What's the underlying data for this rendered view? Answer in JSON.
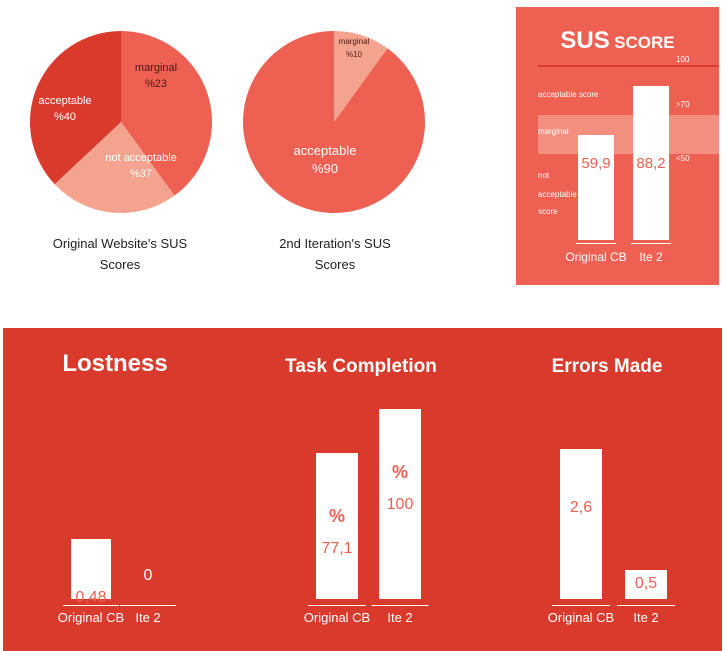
{
  "chart_data": [
    {
      "type": "pie",
      "title": "Original Website's SUS Scores",
      "slices": [
        {
          "label": "acceptable",
          "value_label": "%40",
          "value": 40,
          "color": "#ee6052"
        },
        {
          "label": "marginal",
          "value_label": "%23",
          "value": 23,
          "color": "#f4a48e"
        },
        {
          "label": "not acceptable",
          "value_label": "%37",
          "value": 37,
          "color": "#d93a2c"
        }
      ]
    },
    {
      "type": "pie",
      "title": "2nd Iteration's SUS Scores",
      "slices": [
        {
          "label": "marginal",
          "value_label": "%10",
          "value": 10,
          "color": "#f4a48e"
        },
        {
          "label": "acceptable",
          "value_label": "%90",
          "value": 90,
          "color": "#ee6052"
        }
      ]
    },
    {
      "type": "bar",
      "title_main": "SUS",
      "title_sub": "SCORE",
      "categories": [
        "Original CB",
        "Ite 2"
      ],
      "values": [
        59.9,
        88.2
      ],
      "value_labels": [
        "59,9",
        "88,2"
      ],
      "ylim": [
        0,
        100
      ],
      "scale_labels": {
        "top": "100",
        "upper": ">70",
        "lower": "<50"
      },
      "bands": {
        "acceptable": "acceptable score",
        "marginal": "marginal",
        "not_acceptable": [
          "not",
          "acceptable",
          "score"
        ]
      }
    },
    {
      "type": "bar",
      "title": "Lostness",
      "categories": [
        "Original CB",
        "Ite 2"
      ],
      "values": [
        0.48,
        0
      ],
      "value_labels": [
        "0,48",
        "0"
      ]
    },
    {
      "type": "bar",
      "title": "Task Completion",
      "categories": [
        "Original CB",
        "Ite 2"
      ],
      "values": [
        77.1,
        100
      ],
      "value_labels": [
        "77,1",
        "100"
      ],
      "unit_symbol": "%"
    },
    {
      "type": "bar",
      "title": "Errors Made",
      "categories": [
        "Original CB",
        "Ite 2"
      ],
      "values": [
        2.6,
        0.5
      ],
      "value_labels": [
        "2,6",
        "0,5"
      ]
    }
  ],
  "captions": {
    "pie1": [
      "Original Website's SUS",
      "Scores"
    ],
    "pie2": [
      "2nd Iteration's SUS",
      "Scores"
    ]
  }
}
